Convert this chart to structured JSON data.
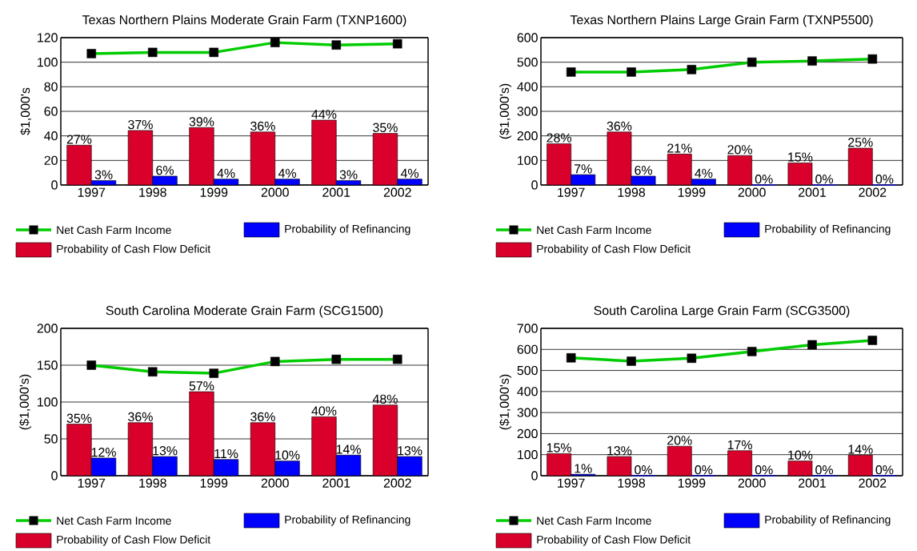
{
  "chart_data": [
    {
      "type": "bar",
      "title": "Texas Northern Plains Moderate Grain Farm (TXNP1600)",
      "ylabel": "$1,000's",
      "categories": [
        "1997",
        "1998",
        "1999",
        "2000",
        "2001",
        "2002"
      ],
      "ylim": [
        0,
        120
      ],
      "yticks": [
        0,
        20,
        40,
        60,
        80,
        100,
        120
      ],
      "y2lim": [
        0,
        100
      ],
      "grid": "y",
      "legend": "bottom",
      "series": [
        {
          "name": "Net Cash Farm Income",
          "type": "line",
          "color": "#00cc00",
          "marker": "square",
          "values": [
            107,
            108,
            108,
            116,
            114,
            115
          ]
        },
        {
          "name": "Probability of Cash Flow Deficit",
          "color": "#d9002b",
          "axis": "y2",
          "values": [
            27,
            37,
            39,
            36,
            44,
            35
          ],
          "value_labels": [
            "27%",
            "37%",
            "39%",
            "36%",
            "44%",
            "35%"
          ]
        },
        {
          "name": "Probability of Refinancing",
          "color": "#0000ff",
          "axis": "y2",
          "values": [
            3,
            6,
            4,
            4,
            3,
            4
          ],
          "value_labels": [
            "3%",
            "6%",
            "4%",
            "4%",
            "3%",
            "4%"
          ]
        }
      ]
    },
    {
      "type": "bar",
      "title": "Texas Northern Plains Large Grain Farm (TXNP5500)",
      "ylabel": "($1,000's)",
      "categories": [
        "1997",
        "1998",
        "1999",
        "2000",
        "2001",
        "2002"
      ],
      "ylim": [
        0,
        600
      ],
      "yticks": [
        0,
        100,
        200,
        300,
        400,
        500,
        600
      ],
      "y2lim": [
        0,
        100
      ],
      "grid": "y",
      "legend": "bottom",
      "series": [
        {
          "name": "Net Cash Farm Income",
          "type": "line",
          "color": "#00cc00",
          "marker": "square",
          "values": [
            460,
            460,
            470,
            500,
            505,
            513
          ]
        },
        {
          "name": "Probability of Cash Flow Deficit",
          "color": "#d9002b",
          "axis": "y2",
          "values": [
            28,
            36,
            21,
            20,
            15,
            25
          ],
          "value_labels": [
            "28%",
            "36%",
            "21%",
            "20%",
            "15%",
            "25%"
          ]
        },
        {
          "name": "Probability of Refinancing",
          "color": "#0000ff",
          "axis": "y2",
          "values": [
            7,
            6,
            4,
            0,
            0,
            0
          ],
          "value_labels": [
            "7%",
            "6%",
            "4%",
            "0%",
            "0%",
            "0%"
          ]
        }
      ]
    },
    {
      "type": "bar",
      "title": "South Carolina Moderate Grain Farm (SCG1500)",
      "ylabel": "($1,000's)",
      "categories": [
        "1997",
        "1998",
        "1999",
        "2000",
        "2001",
        "2002"
      ],
      "ylim": [
        0,
        200
      ],
      "yticks": [
        0,
        50,
        100,
        150,
        200
      ],
      "y2lim": [
        0,
        100
      ],
      "grid": "y",
      "legend": "bottom",
      "series": [
        {
          "name": "Net Cash Farm Income",
          "type": "line",
          "color": "#00cc00",
          "marker": "square",
          "values": [
            150,
            141,
            139,
            155,
            158,
            158
          ]
        },
        {
          "name": "Probability of Cash Flow Deficit",
          "color": "#d9002b",
          "axis": "y2",
          "values": [
            35,
            36,
            57,
            36,
            40,
            48
          ],
          "value_labels": [
            "35%",
            "36%",
            "57%",
            "36%",
            "40%",
            "48%"
          ]
        },
        {
          "name": "Probability of Refinancing",
          "color": "#0000ff",
          "axis": "y2",
          "values": [
            12,
            13,
            11,
            10,
            14,
            13
          ],
          "value_labels": [
            "12%",
            "13%",
            "11%",
            "10%",
            "14%",
            "13%"
          ]
        }
      ]
    },
    {
      "type": "bar",
      "title": "South Carolina Large Grain Farm (SCG3500)",
      "ylabel": "($1,000's)",
      "categories": [
        "1997",
        "1998",
        "1999",
        "2000",
        "2001",
        "2002"
      ],
      "ylim": [
        0,
        700
      ],
      "yticks": [
        0,
        100,
        200,
        300,
        400,
        500,
        600,
        700
      ],
      "y2lim": [
        0,
        100
      ],
      "grid": "y",
      "legend": "bottom",
      "series": [
        {
          "name": "Net Cash Farm Income",
          "type": "line",
          "color": "#00cc00",
          "marker": "square",
          "values": [
            560,
            544,
            558,
            590,
            622,
            643
          ]
        },
        {
          "name": "Probability of Cash Flow Deficit",
          "color": "#d9002b",
          "axis": "y2",
          "values": [
            15,
            13,
            20,
            17,
            10,
            14
          ],
          "value_labels": [
            "15%",
            "13%",
            "20%",
            "17%",
            "10%",
            "14%"
          ]
        },
        {
          "name": "Probability of Refinancing",
          "color": "#0000ff",
          "axis": "y2",
          "values": [
            1,
            0,
            0,
            0,
            0,
            0
          ],
          "value_labels": [
            "1%",
            "0%",
            "0%",
            "0%",
            "0%",
            "0%"
          ]
        }
      ]
    }
  ]
}
